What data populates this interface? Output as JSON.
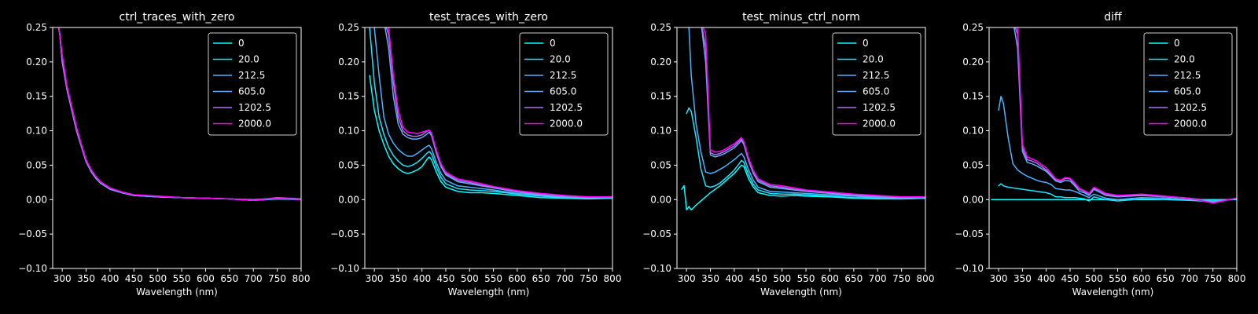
{
  "figure": {
    "background": "#000000",
    "foreground": "#ffffff"
  },
  "legend": {
    "entries": [
      "0",
      "20.0",
      "212.5",
      "605.0",
      "1202.5",
      "2000.0"
    ],
    "colors": [
      "#00ffff",
      "#1ae5ff",
      "#4cb2ff",
      "#66aaff",
      "#aa77ee",
      "#ff00ff"
    ],
    "placement": "top-right"
  },
  "chart_data": [
    {
      "type": "line",
      "title": "ctrl_traces_with_zero",
      "xlabel": "Wavelength (nm)",
      "ylabel": "",
      "xlim": [
        280,
        800
      ],
      "ylim": [
        -0.1,
        0.25
      ],
      "xticks": [
        "300",
        "350",
        "400",
        "450",
        "500",
        "550",
        "600",
        "650",
        "700",
        "750",
        "800"
      ],
      "yticks": [
        "−0.10",
        "−0.05",
        "0.00",
        "0.05",
        "0.10",
        "0.15",
        "0.20",
        "0.25"
      ],
      "grid": false,
      "x": [
        290,
        295,
        300,
        310,
        320,
        330,
        340,
        350,
        360,
        370,
        380,
        400,
        425,
        450,
        500,
        550,
        600,
        650,
        700,
        750,
        800
      ],
      "series": [
        {
          "name": "0",
          "values": [
            0.26,
            0.24,
            0.2,
            0.16,
            0.13,
            0.1,
            0.077,
            0.055,
            0.042,
            0.032,
            0.025,
            0.016,
            0.01,
            0.006,
            0.004,
            0.003,
            0.002,
            0.001,
            -0.001,
            0.001,
            0.0
          ]
        },
        {
          "name": "20.0",
          "values": [
            0.26,
            0.24,
            0.2,
            0.16,
            0.13,
            0.1,
            0.078,
            0.056,
            0.043,
            0.033,
            0.025,
            0.016,
            0.01,
            0.006,
            0.004,
            0.003,
            0.002,
            0.001,
            -0.001,
            0.001,
            0.0
          ]
        },
        {
          "name": "212.5",
          "values": [
            0.26,
            0.24,
            0.2,
            0.16,
            0.13,
            0.1,
            0.077,
            0.055,
            0.042,
            0.032,
            0.024,
            0.015,
            0.01,
            0.006,
            0.004,
            0.003,
            0.002,
            0.001,
            0.0,
            0.002,
            0.001
          ]
        },
        {
          "name": "605.0",
          "values": [
            0.26,
            0.24,
            0.2,
            0.16,
            0.13,
            0.1,
            0.077,
            0.055,
            0.041,
            0.031,
            0.024,
            0.015,
            0.01,
            0.006,
            0.004,
            0.003,
            0.002,
            0.001,
            -0.001,
            0.002,
            0.001
          ]
        },
        {
          "name": "1202.5",
          "values": [
            0.26,
            0.24,
            0.2,
            0.16,
            0.13,
            0.1,
            0.078,
            0.056,
            0.043,
            0.033,
            0.025,
            0.016,
            0.011,
            0.007,
            0.005,
            0.003,
            0.002,
            0.001,
            -0.001,
            0.003,
            0.001
          ]
        },
        {
          "name": "2000.0",
          "values": [
            0.26,
            0.24,
            0.21,
            0.165,
            0.135,
            0.105,
            0.08,
            0.058,
            0.044,
            0.034,
            0.026,
            0.017,
            0.011,
            0.007,
            0.005,
            0.003,
            0.002,
            0.001,
            -0.001,
            0.002,
            0.0
          ]
        }
      ]
    },
    {
      "type": "line",
      "title": "test_traces_with_zero",
      "xlabel": "Wavelength (nm)",
      "ylabel": "",
      "xlim": [
        280,
        800
      ],
      "ylim": [
        -0.1,
        0.25
      ],
      "xticks": [
        "300",
        "350",
        "400",
        "450",
        "500",
        "550",
        "600",
        "650",
        "700",
        "750",
        "800"
      ],
      "yticks": [
        "−0.10",
        "−0.05",
        "0.00",
        "0.05",
        "0.10",
        "0.15",
        "0.20",
        "0.25"
      ],
      "grid": false,
      "x": [
        290,
        300,
        310,
        320,
        330,
        340,
        350,
        360,
        370,
        380,
        390,
        400,
        410,
        415,
        420,
        430,
        440,
        450,
        475,
        500,
        525,
        550,
        600,
        650,
        700,
        750,
        800
      ],
      "series": [
        {
          "name": "0",
          "values": [
            0.18,
            0.13,
            0.1,
            0.08,
            0.063,
            0.052,
            0.045,
            0.04,
            0.038,
            0.04,
            0.043,
            0.048,
            0.058,
            0.062,
            0.058,
            0.04,
            0.026,
            0.018,
            0.012,
            0.01,
            0.01,
            0.009,
            0.006,
            0.003,
            0.002,
            0.001,
            0.002
          ]
        },
        {
          "name": "20.0",
          "values": [
            0.25,
            0.17,
            0.12,
            0.095,
            0.076,
            0.064,
            0.056,
            0.05,
            0.048,
            0.05,
            0.054,
            0.06,
            0.067,
            0.07,
            0.066,
            0.048,
            0.032,
            0.023,
            0.016,
            0.014,
            0.013,
            0.012,
            0.008,
            0.005,
            0.003,
            0.002,
            0.002
          ]
        },
        {
          "name": "212.5",
          "values": [
            0.26,
            0.25,
            0.18,
            0.12,
            0.095,
            0.082,
            0.073,
            0.067,
            0.063,
            0.063,
            0.067,
            0.072,
            0.077,
            0.079,
            0.074,
            0.054,
            0.038,
            0.028,
            0.02,
            0.018,
            0.016,
            0.014,
            0.009,
            0.006,
            0.004,
            0.003,
            0.003
          ]
        },
        {
          "name": "605.0",
          "values": [
            0.26,
            0.26,
            0.26,
            0.26,
            0.22,
            0.15,
            0.11,
            0.095,
            0.09,
            0.088,
            0.088,
            0.09,
            0.095,
            0.098,
            0.093,
            0.068,
            0.048,
            0.036,
            0.026,
            0.023,
            0.02,
            0.017,
            0.011,
            0.007,
            0.004,
            0.003,
            0.003
          ]
        },
        {
          "name": "1202.5",
          "values": [
            0.26,
            0.26,
            0.26,
            0.26,
            0.24,
            0.17,
            0.12,
            0.1,
            0.094,
            0.092,
            0.092,
            0.094,
            0.099,
            0.101,
            0.096,
            0.07,
            0.05,
            0.038,
            0.028,
            0.025,
            0.021,
            0.018,
            0.012,
            0.008,
            0.005,
            0.003,
            0.004
          ]
        },
        {
          "name": "2000.0",
          "values": [
            0.26,
            0.26,
            0.26,
            0.26,
            0.25,
            0.18,
            0.13,
            0.105,
            0.098,
            0.097,
            0.096,
            0.098,
            0.1,
            0.101,
            0.097,
            0.072,
            0.052,
            0.04,
            0.03,
            0.027,
            0.023,
            0.019,
            0.013,
            0.009,
            0.006,
            0.004,
            0.004
          ]
        }
      ]
    },
    {
      "type": "line",
      "title": "test_minus_ctrl_norm",
      "xlabel": "Wavelength (nm)",
      "ylabel": "",
      "xlim": [
        280,
        800
      ],
      "ylim": [
        -0.1,
        0.25
      ],
      "xticks": [
        "300",
        "350",
        "400",
        "450",
        "500",
        "550",
        "600",
        "650",
        "700",
        "750",
        "800"
      ],
      "yticks": [
        "−0.10",
        "−0.05",
        "0.00",
        "0.05",
        "0.10",
        "0.15",
        "0.20",
        "0.25"
      ],
      "grid": false,
      "x": [
        290,
        295,
        300,
        305,
        310,
        320,
        330,
        340,
        350,
        360,
        370,
        380,
        390,
        400,
        410,
        415,
        420,
        430,
        440,
        450,
        475,
        500,
        525,
        550,
        600,
        650,
        700,
        750,
        800
      ],
      "series": [
        {
          "name": "0",
          "values": [
            0.015,
            0.02,
            -0.015,
            -0.01,
            -0.015,
            -0.008,
            -0.002,
            0.004,
            0.01,
            0.015,
            0.02,
            0.026,
            0.032,
            0.038,
            0.046,
            0.05,
            0.048,
            0.03,
            0.018,
            0.01,
            0.006,
            0.005,
            0.006,
            0.005,
            0.004,
            0.002,
            0.001,
            0.001,
            0.002
          ]
        },
        {
          "name": "20.0",
          "values": [
            null,
            null,
            0.125,
            0.133,
            0.128,
            0.09,
            0.045,
            0.02,
            0.018,
            0.02,
            0.024,
            0.03,
            0.036,
            0.043,
            0.052,
            0.057,
            0.054,
            0.036,
            0.022,
            0.014,
            0.009,
            0.008,
            0.008,
            0.007,
            0.005,
            0.003,
            0.002,
            0.001,
            0.002
          ]
        },
        {
          "name": "212.5",
          "values": [
            null,
            null,
            0.26,
            0.25,
            0.18,
            0.11,
            0.07,
            0.04,
            0.038,
            0.04,
            0.044,
            0.048,
            0.053,
            0.058,
            0.064,
            0.067,
            0.062,
            0.043,
            0.028,
            0.018,
            0.012,
            0.011,
            0.01,
            0.009,
            0.007,
            0.005,
            0.003,
            0.002,
            0.003
          ]
        },
        {
          "name": "605.0",
          "values": [
            null,
            null,
            null,
            null,
            0.26,
            0.26,
            0.26,
            0.2,
            0.065,
            0.062,
            0.064,
            0.067,
            0.071,
            0.075,
            0.082,
            0.086,
            0.08,
            0.056,
            0.038,
            0.026,
            0.018,
            0.016,
            0.014,
            0.012,
            0.009,
            0.006,
            0.004,
            0.003,
            0.003
          ]
        },
        {
          "name": "1202.5",
          "values": [
            null,
            null,
            null,
            null,
            0.26,
            0.26,
            0.26,
            0.22,
            0.068,
            0.065,
            0.067,
            0.07,
            0.074,
            0.078,
            0.085,
            0.088,
            0.082,
            0.058,
            0.04,
            0.028,
            0.02,
            0.018,
            0.015,
            0.013,
            0.01,
            0.007,
            0.005,
            0.004,
            0.004
          ]
        },
        {
          "name": "2000.0",
          "values": [
            null,
            null,
            null,
            null,
            0.26,
            0.26,
            0.26,
            0.24,
            0.072,
            0.069,
            0.07,
            0.073,
            0.077,
            0.081,
            0.087,
            0.09,
            0.084,
            0.06,
            0.042,
            0.03,
            0.022,
            0.02,
            0.017,
            0.014,
            0.011,
            0.008,
            0.006,
            0.004,
            0.004
          ]
        }
      ]
    },
    {
      "type": "line",
      "title": "diff",
      "xlabel": "Wavelength (nm)",
      "ylabel": "",
      "xlim": [
        280,
        800
      ],
      "ylim": [
        -0.1,
        0.25
      ],
      "xticks": [
        "300",
        "350",
        "400",
        "450",
        "500",
        "550",
        "600",
        "650",
        "700",
        "750",
        "800"
      ],
      "yticks": [
        "−0.10",
        "−0.05",
        "0.00",
        "0.05",
        "0.10",
        "0.15",
        "0.20",
        "0.25"
      ],
      "grid": false,
      "x": [
        285,
        300,
        305,
        310,
        320,
        330,
        340,
        350,
        360,
        370,
        380,
        390,
        400,
        410,
        420,
        430,
        440,
        450,
        460,
        470,
        480,
        490,
        500,
        525,
        550,
        600,
        650,
        700,
        750,
        800
      ],
      "series": [
        {
          "name": "0",
          "values": [
            0.0,
            0.0,
            0.0,
            0.0,
            0.0,
            0.0,
            0.0,
            0.0,
            0.0,
            0.0,
            0.0,
            0.0,
            0.0,
            0.0,
            0.0,
            0.0,
            0.0,
            0.0,
            0.0,
            0.0,
            0.0,
            0.0,
            0.0,
            0.0,
            0.0,
            0.0,
            0.0,
            0.0,
            0.0,
            0.0
          ]
        },
        {
          "name": "20.0",
          "values": [
            null,
            0.02,
            0.023,
            0.02,
            0.018,
            0.017,
            0.016,
            0.015,
            0.014,
            0.013,
            0.012,
            0.011,
            0.01,
            0.008,
            0.004,
            0.004,
            0.003,
            0.003,
            0.003,
            0.002,
            0.001,
            -0.002,
            0.004,
            0.0,
            -0.002,
            0.001,
            0.0,
            -0.001,
            -0.003,
            0.001
          ]
        },
        {
          "name": "212.5",
          "values": [
            null,
            0.13,
            0.15,
            0.14,
            0.09,
            0.052,
            0.043,
            0.038,
            0.034,
            0.031,
            0.028,
            0.026,
            0.025,
            0.022,
            0.016,
            0.015,
            0.014,
            0.014,
            0.012,
            0.009,
            0.006,
            0.003,
            0.008,
            0.002,
            0.0,
            0.003,
            0.002,
            0.0,
            -0.002,
            0.001
          ]
        },
        {
          "name": "605.0",
          "values": [
            null,
            null,
            null,
            0.26,
            0.26,
            0.26,
            0.22,
            0.07,
            0.054,
            0.052,
            0.049,
            0.045,
            0.041,
            0.034,
            0.027,
            0.025,
            0.028,
            0.027,
            0.02,
            0.012,
            0.01,
            0.006,
            0.015,
            0.006,
            0.004,
            0.006,
            0.004,
            0.002,
            -0.002,
            0.001
          ]
        },
        {
          "name": "1202.5",
          "values": [
            null,
            null,
            null,
            0.26,
            0.26,
            0.26,
            0.24,
            0.075,
            0.058,
            0.056,
            0.053,
            0.048,
            0.043,
            0.036,
            0.029,
            0.027,
            0.031,
            0.03,
            0.022,
            0.015,
            0.012,
            0.008,
            0.017,
            0.008,
            0.005,
            0.007,
            0.004,
            0.002,
            -0.004,
            0.002
          ]
        },
        {
          "name": "2000.0",
          "values": [
            null,
            null,
            null,
            0.26,
            0.26,
            0.26,
            0.25,
            0.08,
            0.062,
            0.059,
            0.056,
            0.051,
            0.046,
            0.038,
            0.03,
            0.028,
            0.032,
            0.031,
            0.024,
            0.016,
            0.013,
            0.009,
            0.018,
            0.009,
            0.006,
            0.008,
            0.005,
            0.002,
            -0.005,
            0.002
          ]
        }
      ]
    }
  ]
}
